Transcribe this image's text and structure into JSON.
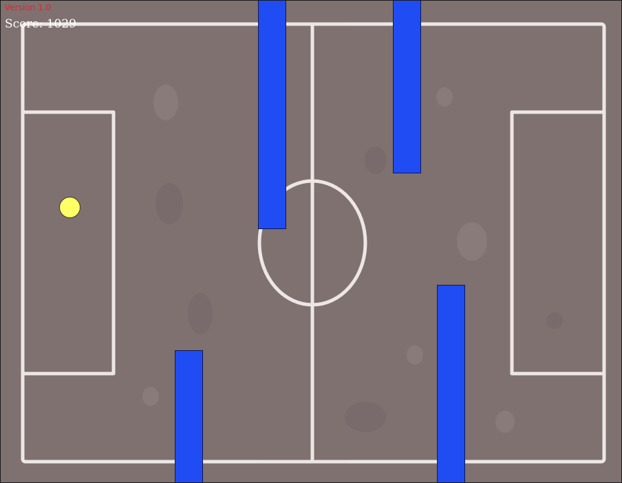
{
  "hud": {
    "version": "Version 1.0",
    "score_label": "Score:",
    "score_value": "1029"
  },
  "colors": {
    "field": "#7f7170",
    "lines": "#f2eeec",
    "pipe": "#1f4cf3",
    "ball": "#ffff66",
    "version_text": "#e0242a",
    "score_text": "#ffffff"
  },
  "icons": {
    "ball": "yellow-ball-icon",
    "obstacle": "blue-bar-icon"
  }
}
